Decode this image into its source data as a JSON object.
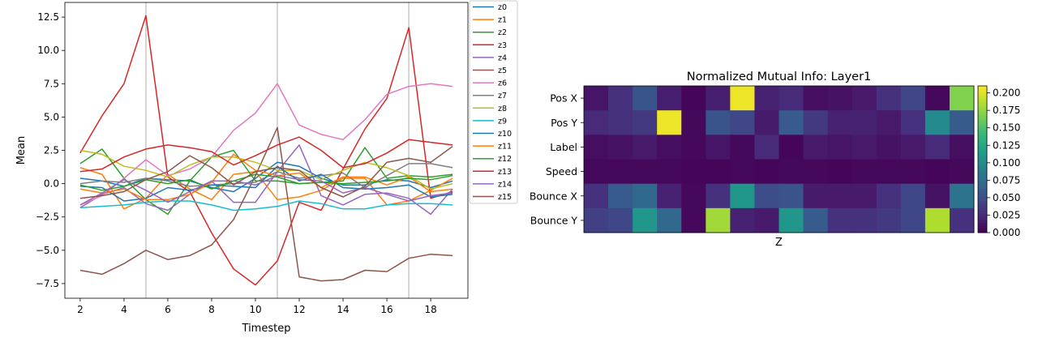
{
  "chart_data": [
    {
      "type": "line",
      "title": "",
      "xlabel": "Timestep",
      "ylabel": "Mean",
      "xlim": [
        1.3,
        19.7
      ],
      "ylim": [
        -8.6,
        13.6
      ],
      "xticks": [
        "2",
        "4",
        "6",
        "8",
        "10",
        "12",
        "14",
        "16",
        "18"
      ],
      "yticks": [
        "12.5",
        "10.0",
        "7.5",
        "5.0",
        "2.5",
        "0.0",
        "−2.5",
        "−5.0",
        "−7.5"
      ],
      "vlines": [
        5,
        11,
        17
      ],
      "grid": false,
      "legend_placement": "outside-right",
      "x": [
        2,
        3,
        4,
        5,
        6,
        7,
        8,
        9,
        10,
        11,
        12,
        13,
        14,
        15,
        16,
        17,
        18,
        19
      ],
      "series": [
        {
          "name": "z0",
          "color": "#1f77b4",
          "values": [
            0.4,
            0.2,
            -0.2,
            0.4,
            0.3,
            0.2,
            -0.3,
            -0.6,
            0.4,
            1.6,
            1.3,
            0.4,
            -0.1,
            -0.1,
            0.3,
            0.2,
            -0.3,
            0.2
          ]
        },
        {
          "name": "z1",
          "color": "#ff7f0e",
          "values": [
            1.2,
            0.7,
            -1.9,
            -1.1,
            0.7,
            -0.4,
            -1.2,
            0.7,
            0.9,
            -1.2,
            -1.0,
            -0.5,
            0.4,
            0.4,
            -1.6,
            -1.3,
            -0.5,
            0.4
          ]
        },
        {
          "name": "z2",
          "color": "#2ca02c",
          "values": [
            1.5,
            2.6,
            0.4,
            -1.2,
            -2.3,
            0.2,
            2.0,
            2.5,
            0.2,
            0.2,
            0.0,
            0.1,
            0.2,
            2.7,
            0.4,
            0.6,
            0.5,
            0.7
          ]
        },
        {
          "name": "z3",
          "color": "#d62728",
          "values": [
            2.3,
            5.1,
            7.5,
            12.6,
            0.5,
            -0.6,
            -3.7,
            -6.4,
            -7.6,
            -5.8,
            -1.4,
            -2.0,
            1.1,
            4.1,
            6.4,
            11.7,
            -1.1,
            -0.6
          ]
        },
        {
          "name": "z4",
          "color": "#9467bd",
          "values": [
            -1.8,
            -0.8,
            -0.3,
            -1.5,
            -2.0,
            -0.8,
            0.2,
            -1.4,
            -1.4,
            0.9,
            2.9,
            -0.9,
            -1.6,
            -0.8,
            -0.7,
            -1.1,
            -2.3,
            -0.4
          ]
        },
        {
          "name": "z5",
          "color": "#8c564b",
          "values": [
            -6.5,
            -6.8,
            -6.0,
            -5.0,
            -5.7,
            -5.4,
            -4.6,
            -2.7,
            0.6,
            4.2,
            -7.0,
            -7.3,
            -7.2,
            -6.5,
            -6.6,
            -5.6,
            -5.3,
            -5.4
          ]
        },
        {
          "name": "z6",
          "color": "#e377c2",
          "values": [
            -1.6,
            -0.9,
            0.4,
            1.8,
            0.6,
            1.1,
            2.0,
            4.0,
            5.3,
            7.5,
            4.4,
            3.7,
            3.3,
            4.8,
            6.7,
            7.3,
            7.5,
            7.3
          ]
        },
        {
          "name": "z7",
          "color": "#7f7f7f",
          "values": [
            0.0,
            0.2,
            0.1,
            0.4,
            0.2,
            -0.2,
            -0.1,
            0.0,
            0.1,
            0.9,
            0.4,
            0.6,
            0.8,
            -0.3,
            0.6,
            1.5,
            1.5,
            1.2
          ]
        },
        {
          "name": "z8",
          "color": "#bcbd22",
          "values": [
            2.5,
            2.2,
            1.3,
            1.0,
            0.5,
            1.4,
            2.0,
            2.0,
            1.6,
            1.0,
            1.0,
            0.3,
            1.0,
            1.6,
            1.2,
            0.6,
            -0.4,
            0.0
          ]
        },
        {
          "name": "z9",
          "color": "#17becf",
          "values": [
            -1.8,
            -1.7,
            -1.6,
            -1.4,
            -1.3,
            -1.3,
            -1.6,
            -2.0,
            -1.9,
            -1.7,
            -1.3,
            -1.5,
            -1.9,
            -1.9,
            -1.6,
            -1.5,
            -1.5,
            -1.6
          ]
        },
        {
          "name": "z10",
          "color": "#1f77b4",
          "values": [
            -0.2,
            -0.3,
            -1.3,
            -1.1,
            -0.3,
            -0.5,
            -0.1,
            -0.2,
            -0.3,
            1.3,
            0.2,
            0.7,
            -0.3,
            -0.4,
            -0.3,
            -0.1,
            -1.0,
            -0.8
          ]
        },
        {
          "name": "z11",
          "color": "#ff7f0e",
          "values": [
            -0.4,
            -0.7,
            -0.4,
            -1.2,
            -1.2,
            -0.8,
            0.1,
            2.2,
            1.0,
            0.6,
            0.8,
            -0.3,
            0.5,
            0.5,
            -0.1,
            0.5,
            -0.6,
            -0.4
          ]
        },
        {
          "name": "z12",
          "color": "#2ca02c",
          "values": [
            -0.1,
            -0.5,
            -0.2,
            0.3,
            0.0,
            0.3,
            -0.4,
            0.2,
            0.7,
            0.5,
            0.0,
            0.1,
            0.0,
            0.1,
            0.2,
            0.4,
            0.3,
            0.6
          ]
        },
        {
          "name": "z13",
          "color": "#d62728",
          "values": [
            0.9,
            1.1,
            2.0,
            2.6,
            2.9,
            2.7,
            2.4,
            1.4,
            2.1,
            2.9,
            3.5,
            2.5,
            1.2,
            1.5,
            2.3,
            3.3,
            3.1,
            2.9
          ]
        },
        {
          "name": "z14",
          "color": "#9467bd",
          "values": [
            -1.6,
            -0.7,
            0.3,
            -0.5,
            -1.4,
            -0.6,
            0.2,
            0.2,
            -0.1,
            0.6,
            0.3,
            0.2,
            -0.7,
            -0.3,
            -0.8,
            -1.3,
            -0.9,
            -0.7
          ]
        },
        {
          "name": "z15",
          "color": "#8c564b",
          "values": [
            -1.1,
            -0.9,
            -0.6,
            0.3,
            0.9,
            2.1,
            1.2,
            -0.1,
            0.9,
            1.2,
            1.0,
            -0.3,
            -1.0,
            -0.2,
            1.6,
            1.9,
            1.6,
            2.8
          ]
        }
      ]
    },
    {
      "type": "heatmap",
      "title": "Normalized Mutual Info: Layer1",
      "xlabel": "Z",
      "ylabel": "",
      "rows": [
        "Pos X",
        "Pos Y",
        "Label",
        "Speed",
        "Bounce X",
        "Bounce Y"
      ],
      "colormap": "viridis",
      "vmin": 0.0,
      "vmax": 0.21,
      "colorbar_ticks": [
        "0.200",
        "0.175",
        "0.150",
        "0.125",
        "0.100",
        "0.075",
        "0.050",
        "0.025",
        "0.000"
      ],
      "values": [
        [
          0.012,
          0.03,
          0.055,
          0.018,
          0.003,
          0.018,
          0.205,
          0.02,
          0.025,
          0.008,
          0.01,
          0.015,
          0.03,
          0.045,
          0.004,
          0.17
        ],
        [
          0.025,
          0.03,
          0.035,
          0.205,
          0.005,
          0.055,
          0.045,
          0.015,
          0.06,
          0.035,
          0.02,
          0.02,
          0.015,
          0.03,
          0.1,
          0.06
        ],
        [
          0.008,
          0.01,
          0.015,
          0.008,
          0.004,
          0.012,
          0.005,
          0.025,
          0.003,
          0.015,
          0.012,
          0.015,
          0.01,
          0.015,
          0.025,
          0.008
        ],
        [
          0.004,
          0.004,
          0.004,
          0.004,
          0.003,
          0.003,
          0.004,
          0.003,
          0.004,
          0.004,
          0.003,
          0.004,
          0.004,
          0.004,
          0.003,
          0.004
        ],
        [
          0.03,
          0.06,
          0.07,
          0.02,
          0.004,
          0.03,
          0.11,
          0.05,
          0.055,
          0.015,
          0.015,
          0.015,
          0.03,
          0.045,
          0.01,
          0.08
        ],
        [
          0.04,
          0.045,
          0.11,
          0.07,
          0.004,
          0.18,
          0.02,
          0.015,
          0.11,
          0.06,
          0.03,
          0.03,
          0.035,
          0.045,
          0.185,
          0.03
        ]
      ]
    }
  ]
}
